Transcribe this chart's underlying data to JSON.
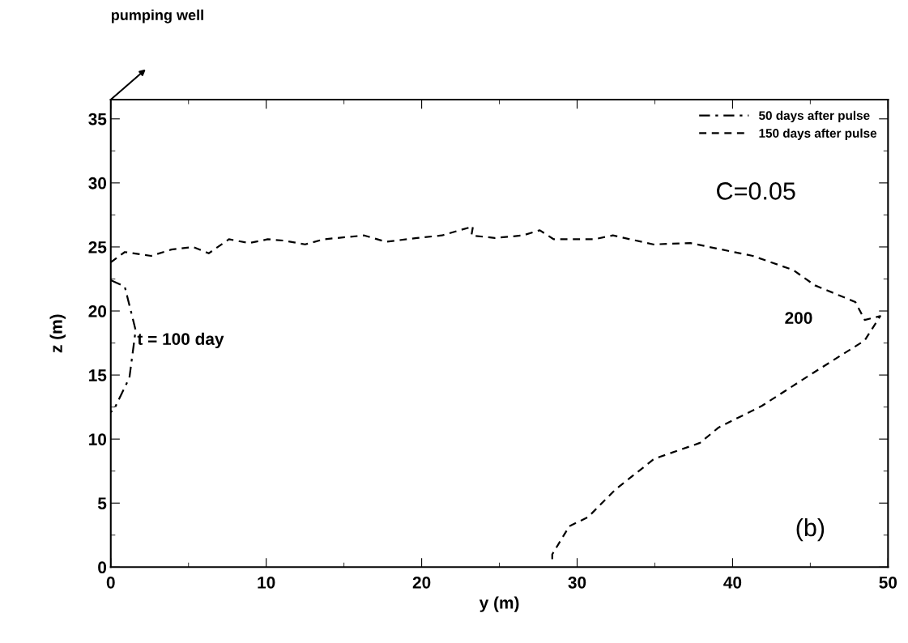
{
  "chart_data": {
    "type": "line",
    "xlabel": "y (m)",
    "ylabel": "z (m)",
    "xlim": [
      0,
      50
    ],
    "xticks": [
      0,
      10,
      20,
      30,
      40,
      50
    ],
    "ylim": [
      0,
      36.5
    ],
    "yticks": [
      0,
      5,
      10,
      15,
      20,
      25,
      30,
      35
    ],
    "grid": false,
    "legend": "top right",
    "marker": "none",
    "series": [
      {
        "name": "50 days after pulse",
        "color": "#000000",
        "line_style": "dashdot",
        "x": [
          0,
          0.9,
          1.6,
          1.2,
          0.2,
          0
        ],
        "values": [
          22.4,
          21.9,
          18.5,
          14.8,
          12.3,
          12.1
        ]
      },
      {
        "name": "150 days after pulse",
        "color": "#000000",
        "line_style": "dashed",
        "x": [
          0,
          0.9,
          2.6,
          3.9,
          5.3,
          6.3,
          7.6,
          8.9,
          10.1,
          11.1,
          12.5,
          13.7,
          16.3,
          17.7,
          19.7,
          21.3,
          23.3,
          23.2,
          24.7,
          26.5,
          27.6,
          28.5,
          31.1,
          32.3,
          34.9,
          37.3,
          41.3,
          43.9,
          45.3,
          47.9,
          48.5,
          49.5,
          48.5,
          45.1,
          41.9,
          39.1,
          37.9,
          35.3,
          34.9,
          32.5,
          30.7,
          29.5,
          28.4,
          28.4
        ],
        "values": [
          23.8,
          24.6,
          24.3,
          24.8,
          25.0,
          24.5,
          25.6,
          25.3,
          25.6,
          25.5,
          25.2,
          25.6,
          25.9,
          25.4,
          25.7,
          25.9,
          26.6,
          25.9,
          25.7,
          25.9,
          26.3,
          25.6,
          25.6,
          25.9,
          25.2,
          25.3,
          24.3,
          23.2,
          22.0,
          20.7,
          19.3,
          19.6,
          17.7,
          15.1,
          12.6,
          10.9,
          9.7,
          8.6,
          8.4,
          6.1,
          3.9,
          3.2,
          1.0,
          0.25
        ]
      }
    ],
    "annotations": [
      "pumping well",
      {
        "text": "t = 100 day",
        "x": 1.7,
        "y": 17.7
      },
      "200",
      "C=0.05",
      "(b)"
    ]
  }
}
